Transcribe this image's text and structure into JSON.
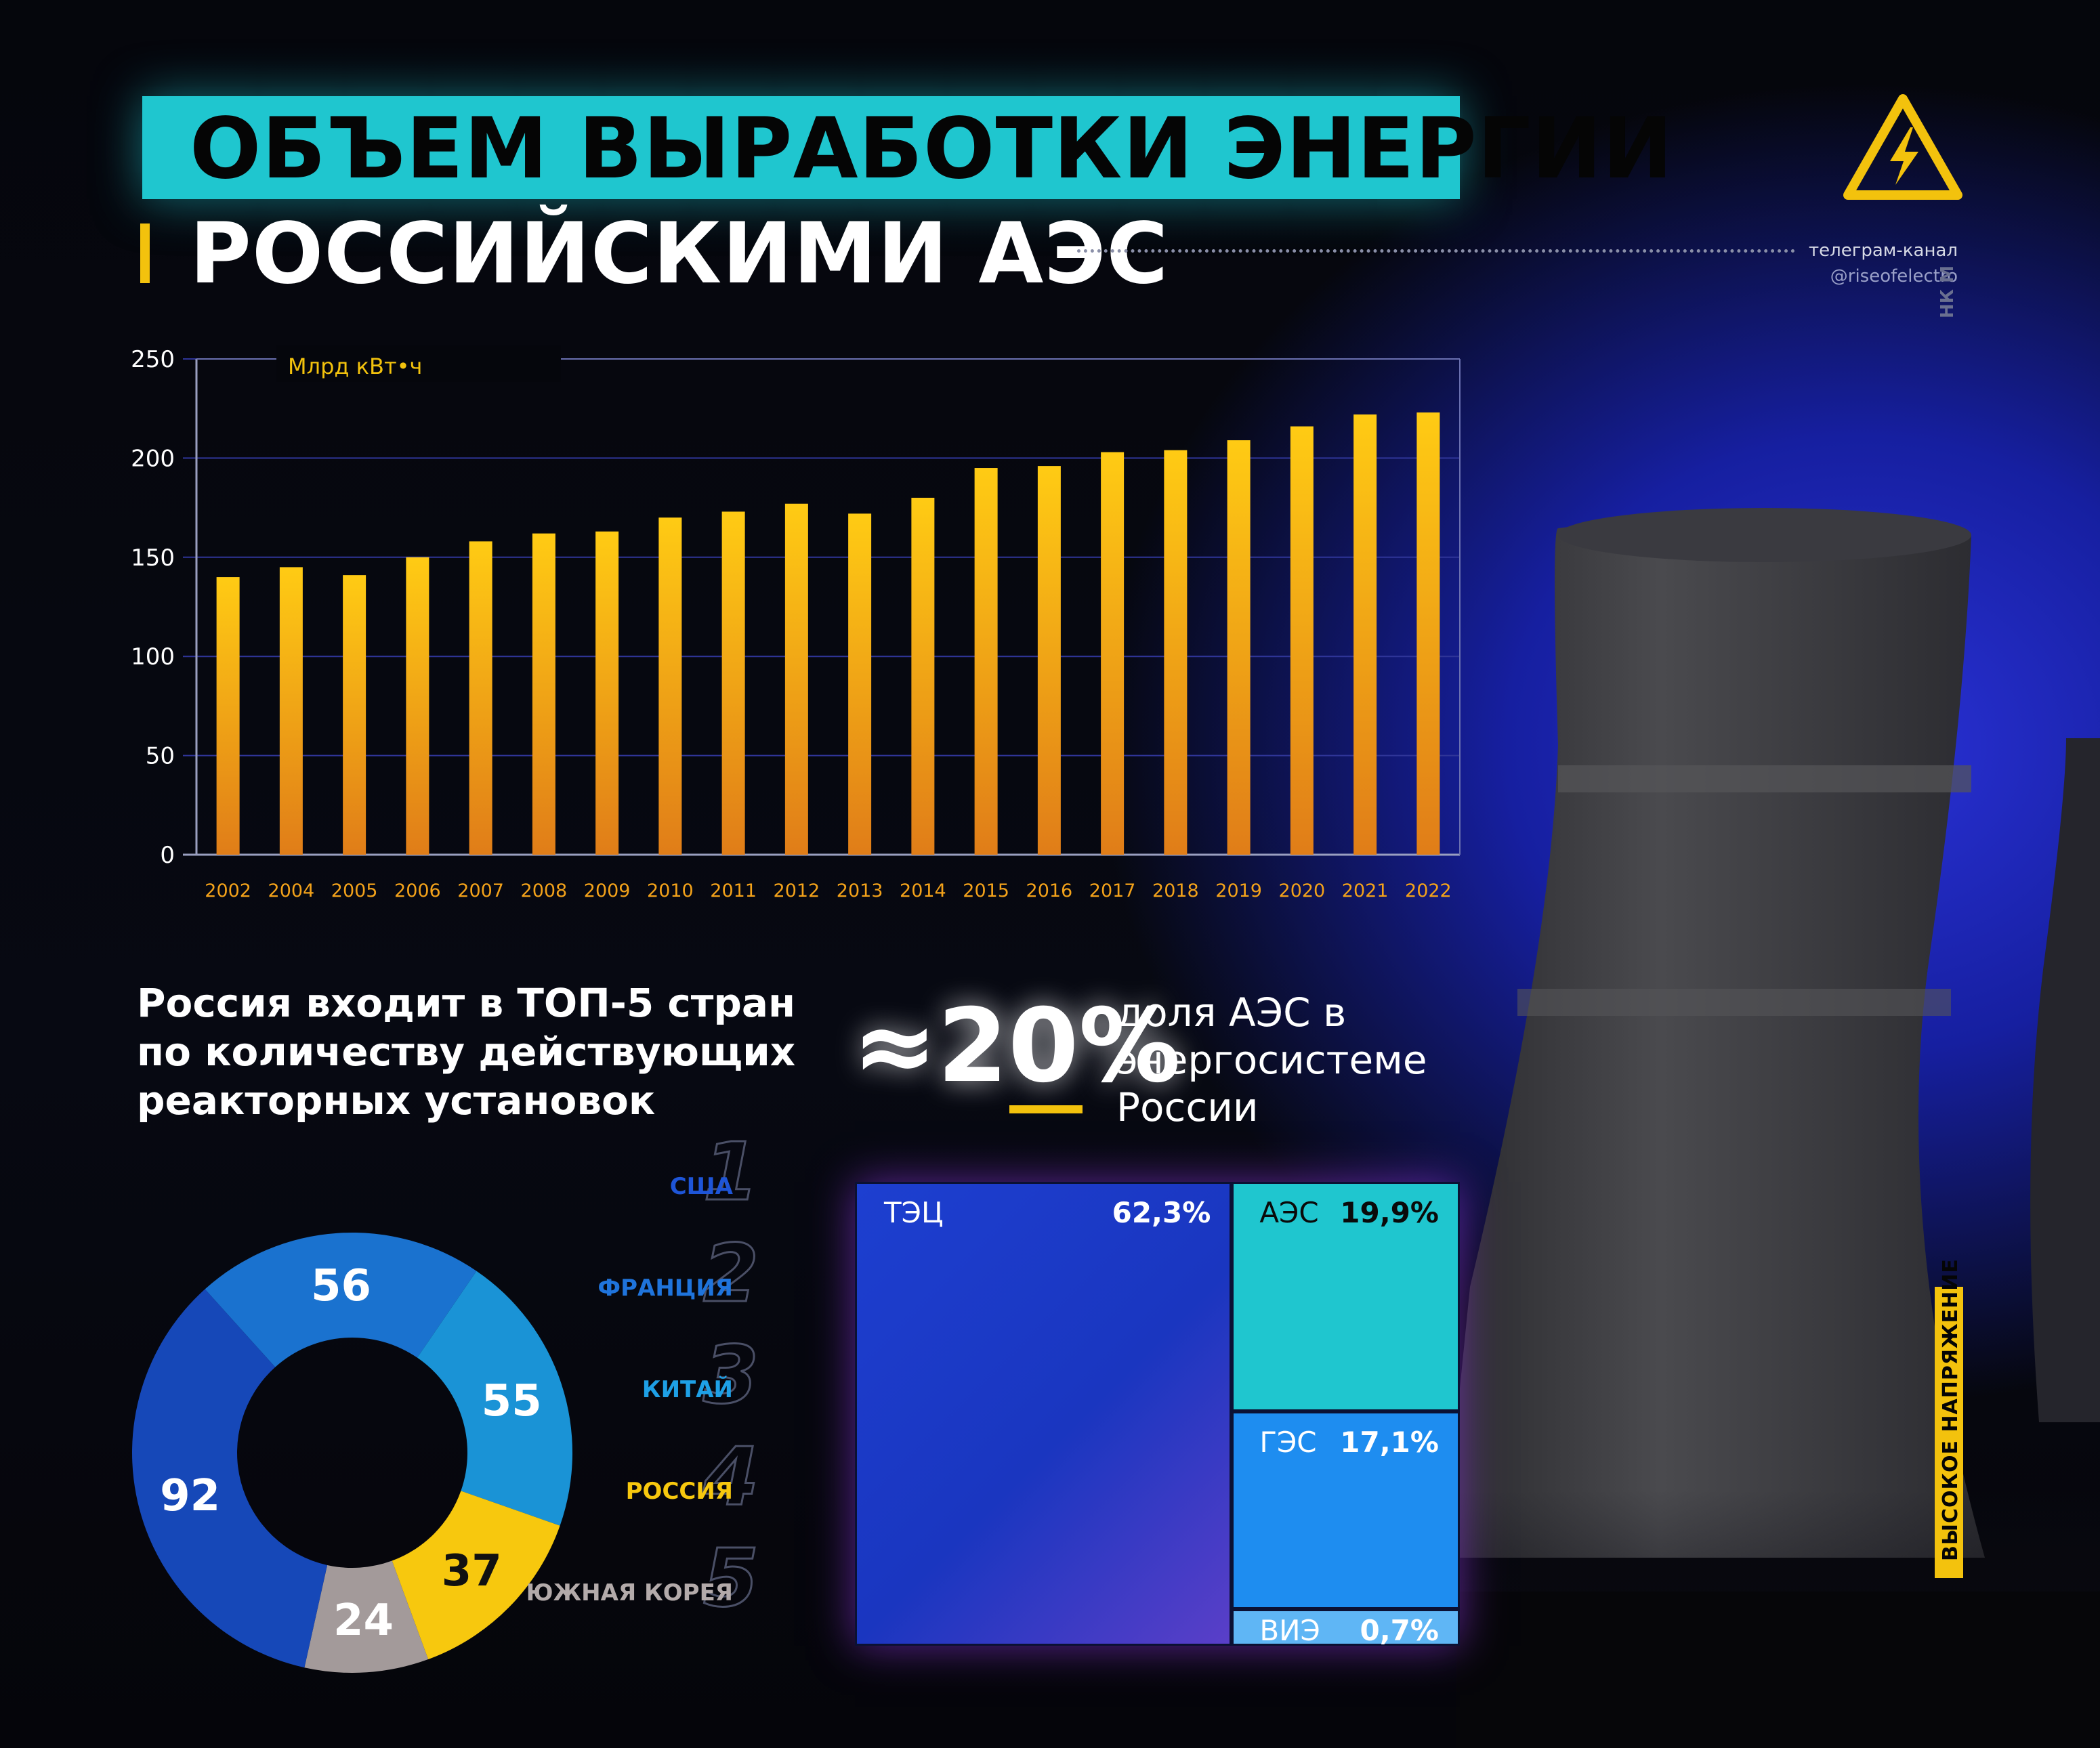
{
  "title": {
    "line1": "ОБЪЕМ ВЫРАБОТКИ ЭНЕРГИИ",
    "line2": "РОССИЙСКИМИ АЭС"
  },
  "brand": {
    "channel_label": "телеграм-канал",
    "channel_handle": "@riseofelectro",
    "side_code": "НК М",
    "stamp": "ВЫСОКОЕ НАПРЯЖЕНИЕ",
    "icon": "high-voltage-warning-icon",
    "accent_color": "#f3c20d",
    "cyan_color": "#1fc6cf"
  },
  "chart_data": [
    {
      "type": "bar",
      "ylabel": "Млрд кВт•ч",
      "ylim": [
        0,
        250
      ],
      "yticks": [
        0,
        50,
        100,
        150,
        200,
        250
      ],
      "grid": true,
      "categories": [
        "2002",
        "2004",
        "2005",
        "2006",
        "2007",
        "2008",
        "2009",
        "2010",
        "2011",
        "2012",
        "2013",
        "2014",
        "2015",
        "2016",
        "2017",
        "2018",
        "2019",
        "2020",
        "2021",
        "2022"
      ],
      "values": [
        140,
        145,
        141,
        150,
        158,
        162,
        163,
        170,
        173,
        177,
        172,
        180,
        195,
        196,
        203,
        204,
        209,
        216,
        222,
        223
      ],
      "bar_color_top": "#ffcb14",
      "bar_color_bottom": "#e07d18"
    },
    {
      "type": "pie",
      "donut": true,
      "title": "Россия входит в ТОП-5 стран по количеству действующих реакторных установок",
      "title_bold": "ТОП-5",
      "slices": [
        {
          "name": "США",
          "rank": "1",
          "value": 92,
          "color": "#1648b8",
          "label_color": "#1e55d8"
        },
        {
          "name": "ФРАНЦИЯ",
          "rank": "2",
          "value": 56,
          "color": "#1a72cf",
          "label_color": "#1f74dc"
        },
        {
          "name": "КИТАЙ",
          "rank": "3",
          "value": 55,
          "color": "#1a93d6",
          "label_color": "#1ea0e6"
        },
        {
          "name": "РОССИЯ",
          "rank": "4",
          "value": 37,
          "color": "#f7c80e",
          "label_color": "#f7c80e"
        },
        {
          "name": "ЮЖНАЯ КОРЕЯ",
          "rank": "5",
          "value": 24,
          "color": "#a39a9a",
          "label_color": "#b3aaaa"
        }
      ]
    },
    {
      "type": "heatmap",
      "subtype": "treemap",
      "headline_value": "≈20%",
      "headline_text": "доля АЭС в энергосистеме России",
      "tiles": [
        {
          "name": "ТЭЦ",
          "value": "62,3%",
          "share": 62.3,
          "color": "#1f3ec8"
        },
        {
          "name": "АЭС",
          "value": "19,9%",
          "share": 19.9,
          "color": "#1fc6cf"
        },
        {
          "name": "ГЭС",
          "value": "17,1%",
          "share": 17.1,
          "color": "#1e8df0"
        },
        {
          "name": "ВИЭ",
          "value": "0,7%",
          "share": 0.7,
          "color": "#5fb6f5"
        }
      ]
    }
  ]
}
